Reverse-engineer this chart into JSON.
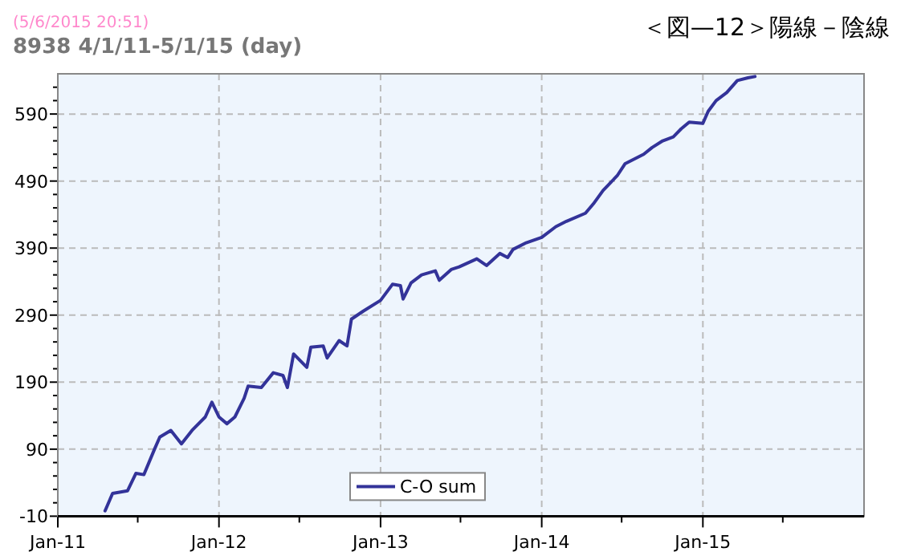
{
  "chart_data": {
    "type": "line",
    "title": "8938 4/1/11-5/1/15 (day)",
    "subtitle": "＜図—12＞陽線－陰線",
    "annotations": [
      "(5/6/2015 20:51)"
    ],
    "x": [
      "2011-04-18",
      "2011-05-05",
      "2011-06-08",
      "2011-06-27",
      "2011-07-15",
      "2011-08-08",
      "2011-08-20",
      "2011-09-14",
      "2011-10-08",
      "2011-11-01",
      "2011-12-01",
      "2011-12-16",
      "2012-01-01",
      "2012-01-19",
      "2012-02-06",
      "2012-02-27",
      "2012-03-07",
      "2012-04-06",
      "2012-05-03",
      "2012-05-25",
      "2012-06-04",
      "2012-06-18",
      "2012-07-18",
      "2012-07-27",
      "2012-08-24",
      "2012-09-02",
      "2012-09-29",
      "2012-10-17",
      "2012-10-27",
      "2012-11-23",
      "2013-01-01",
      "2013-01-28",
      "2013-02-15",
      "2013-02-21",
      "2013-03-11",
      "2013-04-04",
      "2013-05-05",
      "2013-05-14",
      "2013-06-10",
      "2013-06-28",
      "2013-08-07",
      "2013-08-29",
      "2013-09-28",
      "2013-10-16",
      "2013-10-28",
      "2013-11-27",
      "2014-01-01",
      "2014-02-02",
      "2014-02-26",
      "2014-04-10",
      "2014-04-28",
      "2014-05-20",
      "2014-06-21",
      "2014-07-09",
      "2014-08-20",
      "2014-09-08",
      "2014-10-02",
      "2014-10-26",
      "2014-11-13",
      "2014-12-01",
      "2015-01-01",
      "2015-01-13",
      "2015-01-31",
      "2015-02-24",
      "2015-03-20",
      "2015-04-13",
      "2015-04-29"
    ],
    "series": [
      {
        "name": "C-O sum",
        "color": "#333399",
        "values": [
          -2,
          24,
          28,
          54,
          52,
          90,
          108,
          118,
          98,
          118,
          138,
          160,
          138,
          128,
          138,
          166,
          184,
          182,
          204,
          200,
          182,
          232,
          212,
          242,
          244,
          226,
          252,
          244,
          284,
          296,
          312,
          336,
          334,
          314,
          338,
          350,
          356,
          342,
          358,
          362,
          374,
          364,
          382,
          376,
          388,
          398,
          406,
          422,
          430,
          442,
          456,
          476,
          498,
          516,
          530,
          540,
          550,
          556,
          568,
          578,
          576,
          594,
          610,
          622,
          640,
          644,
          646
        ]
      }
    ],
    "xlim": [
      "2011-01-01",
      "2016-01-01"
    ],
    "xticks": [
      {
        "value": "2011-01-01",
        "label": "Jan-11"
      },
      {
        "value": "2011-07-01",
        "label": null
      },
      {
        "value": "2012-01-01",
        "label": "Jan-12"
      },
      {
        "value": "2012-07-01",
        "label": null
      },
      {
        "value": "2013-01-01",
        "label": "Jan-13"
      },
      {
        "value": "2013-07-01",
        "label": null
      },
      {
        "value": "2014-01-01",
        "label": "Jan-14"
      },
      {
        "value": "2014-07-01",
        "label": null
      },
      {
        "value": "2015-01-01",
        "label": "Jan-15"
      },
      {
        "value": "2015-07-01",
        "label": null
      }
    ],
    "ylim": [
      -10,
      650
    ],
    "yticks": [
      -10,
      {
        "value": 10,
        "label": null
      },
      {
        "value": 30,
        "label": null
      },
      {
        "value": 50,
        "label": null
      },
      {
        "value": 70,
        "label": null
      },
      90,
      {
        "value": 110,
        "label": null
      },
      {
        "value": 130,
        "label": null
      },
      {
        "value": 150,
        "label": null
      },
      {
        "value": 170,
        "label": null
      },
      190,
      {
        "value": 210,
        "label": null
      },
      {
        "value": 230,
        "label": null
      },
      {
        "value": 250,
        "label": null
      },
      {
        "value": 270,
        "label": null
      },
      290,
      {
        "value": 310,
        "label": null
      },
      {
        "value": 330,
        "label": null
      },
      {
        "value": 350,
        "label": null
      },
      {
        "value": 370,
        "label": null
      },
      390,
      {
        "value": 410,
        "label": null
      },
      {
        "value": 430,
        "label": null
      },
      {
        "value": 450,
        "label": null
      },
      {
        "value": 470,
        "label": null
      },
      490,
      {
        "value": 510,
        "label": null
      },
      {
        "value": 530,
        "label": null
      },
      {
        "value": 550,
        "label": null
      },
      {
        "value": 570,
        "label": null
      },
      590,
      {
        "value": 610,
        "label": null
      },
      {
        "value": 630,
        "label": null
      }
    ],
    "grid": true,
    "legend": "bottom",
    "marker": "none",
    "line_style": "solid"
  }
}
